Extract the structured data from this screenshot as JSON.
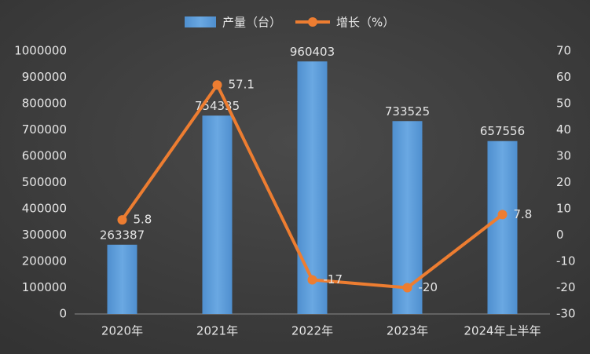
{
  "chart_data": {
    "type": "bar_line",
    "categories": [
      "2020年",
      "2021年",
      "2022年",
      "2023年",
      "2024年上半年"
    ],
    "series": [
      {
        "name": "产量（台）",
        "color": "#5b9bd5",
        "type": "bar",
        "values": [
          263387,
          754335,
          960403,
          733525,
          657556
        ]
      },
      {
        "name": "增长（%）",
        "color": "#ed7d31",
        "type": "line",
        "axis": "y2",
        "values": [
          5.8,
          57.1,
          -17,
          -20,
          7.8
        ]
      }
    ],
    "ylim": [
      0,
      1000000
    ],
    "yticks": [
      0,
      100000,
      200000,
      300000,
      400000,
      500000,
      600000,
      700000,
      800000,
      900000,
      1000000
    ],
    "y2lim": [
      -30,
      70
    ],
    "y2ticks": [
      -30,
      -20,
      -10,
      0,
      10,
      20,
      30,
      40,
      50,
      60,
      70
    ],
    "legend": "top"
  }
}
